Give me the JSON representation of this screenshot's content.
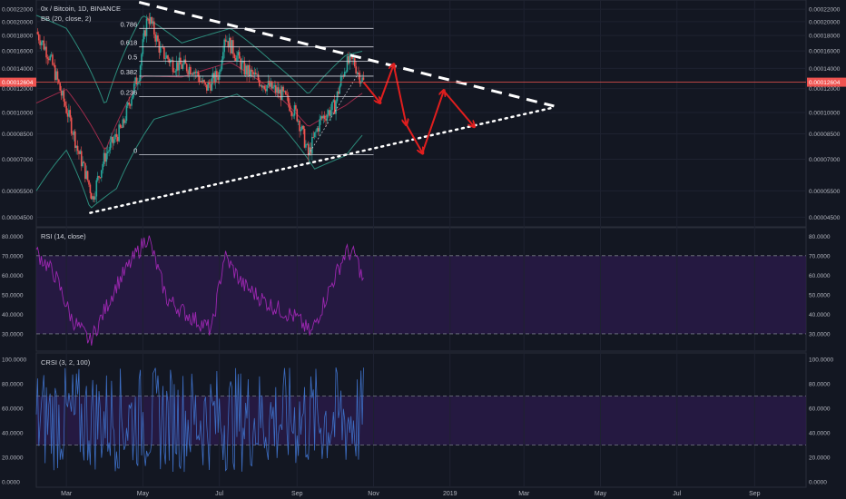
{
  "colors": {
    "background": "#131722",
    "grid": "#1e2230",
    "text": "#b2b5be",
    "candle_up": "#26a69a",
    "candle_down": "#ef5350",
    "bb_band": "#2c8a7a",
    "bb_basis": "#9c2a4a",
    "rsi_line": "#9c27b0",
    "rsi_fill": "#2a1a4a",
    "crsi_line": "#3d6ec4",
    "crsi_fill": "#2a1a4a",
    "price_line": "#ef5350",
    "price_tag": "#ef5350",
    "arrows": "#e01e1e",
    "trendline": "#ffffff",
    "fib": "#d1d4dc"
  },
  "legend": {
    "symbol": "0x / Bitcoin, 1D, BINANCE",
    "bb": "BB (20, close, 2)",
    "rsi": "RSI (14, close)",
    "crsi": "CRSI (3, 2, 100)"
  },
  "current_price": "0.00012604",
  "fib_labels": [
    "0.786",
    "0.618",
    "0.5",
    "0.382",
    "0.236",
    "0"
  ],
  "x_ticks": [
    "Mar",
    "May",
    "Jul",
    "Sep",
    "Nov",
    "2019",
    "Mar",
    "May",
    "Jul",
    "Sep"
  ],
  "chart_data": [
    {
      "type": "candlestick",
      "title": "0x / Bitcoin, 1D, BINANCE",
      "indicator": "BB (20, close, 2)",
      "y_scale": "log",
      "ylim": [
        4.18e-05,
        0.000236
      ],
      "x_range": [
        "2018-02-05",
        "2019-10-12"
      ],
      "y_ticks": [
        0.00022,
        0.0002,
        0.00018,
        0.00016,
        0.00014,
        0.00012,
        0.0001,
        8.5e-05,
        7e-05,
        5.5e-05,
        4.5e-05
      ],
      "y_tick_labels": [
        "0.00022000",
        "0.00020000",
        "0.00018000",
        "0.00016000",
        "0.00014000",
        "0.00012000",
        "0.00010000",
        "0.00008500",
        "0.00007000",
        "0.00005500",
        "0.00004500"
      ],
      "last_price": 0.00012604,
      "price_path": {
        "dates": [
          "2018-02-05",
          "2018-02-15",
          "2018-02-25",
          "2018-03-10",
          "2018-03-22",
          "2018-04-01",
          "2018-04-15",
          "2018-04-28",
          "2018-05-05",
          "2018-05-15",
          "2018-05-25",
          "2018-06-10",
          "2018-06-20",
          "2018-07-01",
          "2018-07-05",
          "2018-07-20",
          "2018-08-05",
          "2018-08-20",
          "2018-09-01",
          "2018-09-10",
          "2018-09-20",
          "2018-10-01",
          "2018-10-10",
          "2018-10-16",
          "2018-10-20",
          "2018-10-24"
        ],
        "closes": [
          0.000185,
          0.000155,
          0.000115,
          7.5e-05,
          5.2e-05,
          7.2e-05,
          9e-05,
          0.000135,
          0.00021,
          0.00016,
          0.000145,
          0.00014,
          0.00012,
          0.000135,
          0.00018,
          0.00014,
          0.000125,
          0.000115,
          9.8e-05,
          7.2e-05,
          9.5e-05,
          0.000105,
          0.000145,
          0.000148,
          0.000135,
          0.00012604
        ]
      },
      "bb_upper": {
        "dates": [
          "2018-02-05",
          "2018-03-01",
          "2018-04-01",
          "2018-05-01",
          "2018-06-01",
          "2018-07-10",
          "2018-08-10",
          "2018-09-10",
          "2018-10-10",
          "2018-10-24"
        ],
        "values": [
          0.00021,
          0.00019,
          0.000105,
          0.00021,
          0.00017,
          0.00019,
          0.00015,
          0.000115,
          0.000155,
          0.00016
        ]
      },
      "bb_lower": {
        "dates": [
          "2018-02-05",
          "2018-03-01",
          "2018-03-20",
          "2018-04-10",
          "2018-05-10",
          "2018-06-15",
          "2018-07-15",
          "2018-08-20",
          "2018-09-15",
          "2018-10-10",
          "2018-10-24"
        ],
        "values": [
          5.5e-05,
          7.5e-05,
          4.8e-05,
          5.6e-05,
          9.5e-05,
          0.000105,
          0.000115,
          9e-05,
          6.5e-05,
          7.2e-05,
          8.5e-05
        ]
      },
      "fib_levels": [
        {
          "label": "0.786",
          "value": 0.00019
        },
        {
          "label": "0.618",
          "value": 0.000165
        },
        {
          "label": "0.5",
          "value": 0.000148
        },
        {
          "label": "0.382",
          "value": 0.000132
        },
        {
          "label": "0.236",
          "value": 0.000113
        },
        {
          "label": "0",
          "value": 7.25e-05
        }
      ],
      "descending_trendline": {
        "from": {
          "date": "2018-04-28",
          "price": 0.000232
        },
        "to": {
          "date": "2019-03-25",
          "price": 0.000105
        }
      },
      "ascending_trendline": {
        "from": {
          "date": "2018-03-20",
          "price": 4.65e-05
        },
        "to": {
          "date": "2019-03-25",
          "price": 0.000104
        }
      },
      "projection_arrows": [
        {
          "date": "2018-10-24",
          "price": 0.000126
        },
        {
          "date": "2018-11-06",
          "price": 0.000108
        },
        {
          "date": "2018-11-17",
          "price": 0.000144
        },
        {
          "date": "2018-11-27",
          "price": 9.15e-05
        },
        {
          "date": "2018-12-10",
          "price": 7.35e-05
        },
        {
          "date": "2018-12-27",
          "price": 0.000118
        },
        {
          "date": "2019-01-20",
          "price": 9e-05
        }
      ]
    },
    {
      "type": "line",
      "title": "RSI (14, close)",
      "ylim": [
        23,
        82
      ],
      "y_ticks": [
        80,
        70,
        60,
        50,
        40,
        30
      ],
      "y_tick_labels": [
        "80.0000",
        "70.0000",
        "60.0000",
        "50.0000",
        "40.0000",
        "30.0000"
      ],
      "bands": [
        70,
        30
      ],
      "series": {
        "dates": [
          "2018-02-05",
          "2018-02-20",
          "2018-03-05",
          "2018-03-20",
          "2018-04-10",
          "2018-05-01",
          "2018-05-05",
          "2018-05-20",
          "2018-06-05",
          "2018-06-25",
          "2018-07-05",
          "2018-07-20",
          "2018-08-10",
          "2018-09-01",
          "2018-09-12",
          "2018-09-25",
          "2018-10-10",
          "2018-10-18",
          "2018-10-24"
        ],
        "values": [
          72,
          60,
          38,
          26,
          55,
          76,
          80,
          48,
          40,
          32,
          70,
          55,
          45,
          38,
          30,
          50,
          72,
          70,
          56
        ]
      }
    },
    {
      "type": "line",
      "title": "CRSI (3, 2, 100)",
      "ylim": [
        0,
        100
      ],
      "y_ticks": [
        100,
        80,
        60,
        40,
        20,
        0
      ],
      "y_tick_labels": [
        "100.0000",
        "80.0000",
        "60.0000",
        "40.0000",
        "20.0000",
        "0.0000"
      ],
      "bands": [
        70,
        30
      ],
      "series": {
        "dates": [
          "2018-02-05",
          "2018-10-24"
        ],
        "values_range": [
          5,
          95
        ]
      }
    }
  ]
}
